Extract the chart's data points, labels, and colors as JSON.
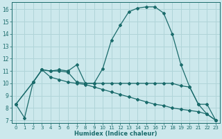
{
  "xlabel": "Humidex (Indice chaleur)",
  "background_color": "#cce8ec",
  "grid_color": "#b0d4d8",
  "line_color": "#1a6b6b",
  "xlim": [
    -0.5,
    23.5
  ],
  "ylim": [
    6.8,
    16.6
  ],
  "yticks": [
    7,
    8,
    9,
    10,
    11,
    12,
    13,
    14,
    15,
    16
  ],
  "xticks": [
    0,
    1,
    2,
    3,
    4,
    5,
    6,
    7,
    8,
    9,
    10,
    11,
    12,
    13,
    14,
    15,
    16,
    17,
    18,
    19,
    20,
    21,
    22,
    23
  ],
  "line1_x": [
    0,
    1,
    2,
    3,
    4,
    5,
    6,
    7,
    8,
    9,
    10,
    11,
    12,
    13,
    14,
    15,
    16,
    17,
    18,
    19,
    20,
    21,
    22,
    23
  ],
  "line1_y": [
    8.3,
    7.2,
    10.1,
    11.1,
    11.0,
    11.1,
    11.0,
    11.5,
    10.0,
    10.0,
    11.2,
    13.5,
    14.7,
    15.8,
    16.1,
    16.2,
    16.2,
    15.7,
    14.0,
    11.5,
    9.7,
    8.3,
    7.5,
    7.0
  ],
  "line2_x": [
    0,
    2,
    3,
    4,
    5,
    6,
    7,
    8,
    9,
    10,
    11,
    12,
    13,
    14,
    15,
    16,
    17,
    18,
    19,
    20,
    21,
    22,
    23
  ],
  "line2_y": [
    8.3,
    10.1,
    11.1,
    10.5,
    10.3,
    10.1,
    10.0,
    9.9,
    9.7,
    9.5,
    9.3,
    9.1,
    8.9,
    8.7,
    8.5,
    8.3,
    8.2,
    8.0,
    7.9,
    7.8,
    7.7,
    7.5,
    7.0
  ],
  "line3_x": [
    0,
    2,
    3,
    4,
    5,
    6,
    7,
    8,
    9,
    10,
    11,
    12,
    13,
    14,
    15,
    16,
    17,
    18,
    19,
    20,
    21,
    22,
    23
  ],
  "line3_y": [
    8.3,
    10.1,
    11.1,
    11.0,
    11.0,
    10.9,
    10.1,
    10.0,
    10.0,
    10.0,
    10.0,
    10.0,
    10.0,
    10.0,
    10.0,
    10.0,
    10.0,
    10.0,
    9.8,
    9.7,
    8.3,
    8.3,
    7.0
  ]
}
